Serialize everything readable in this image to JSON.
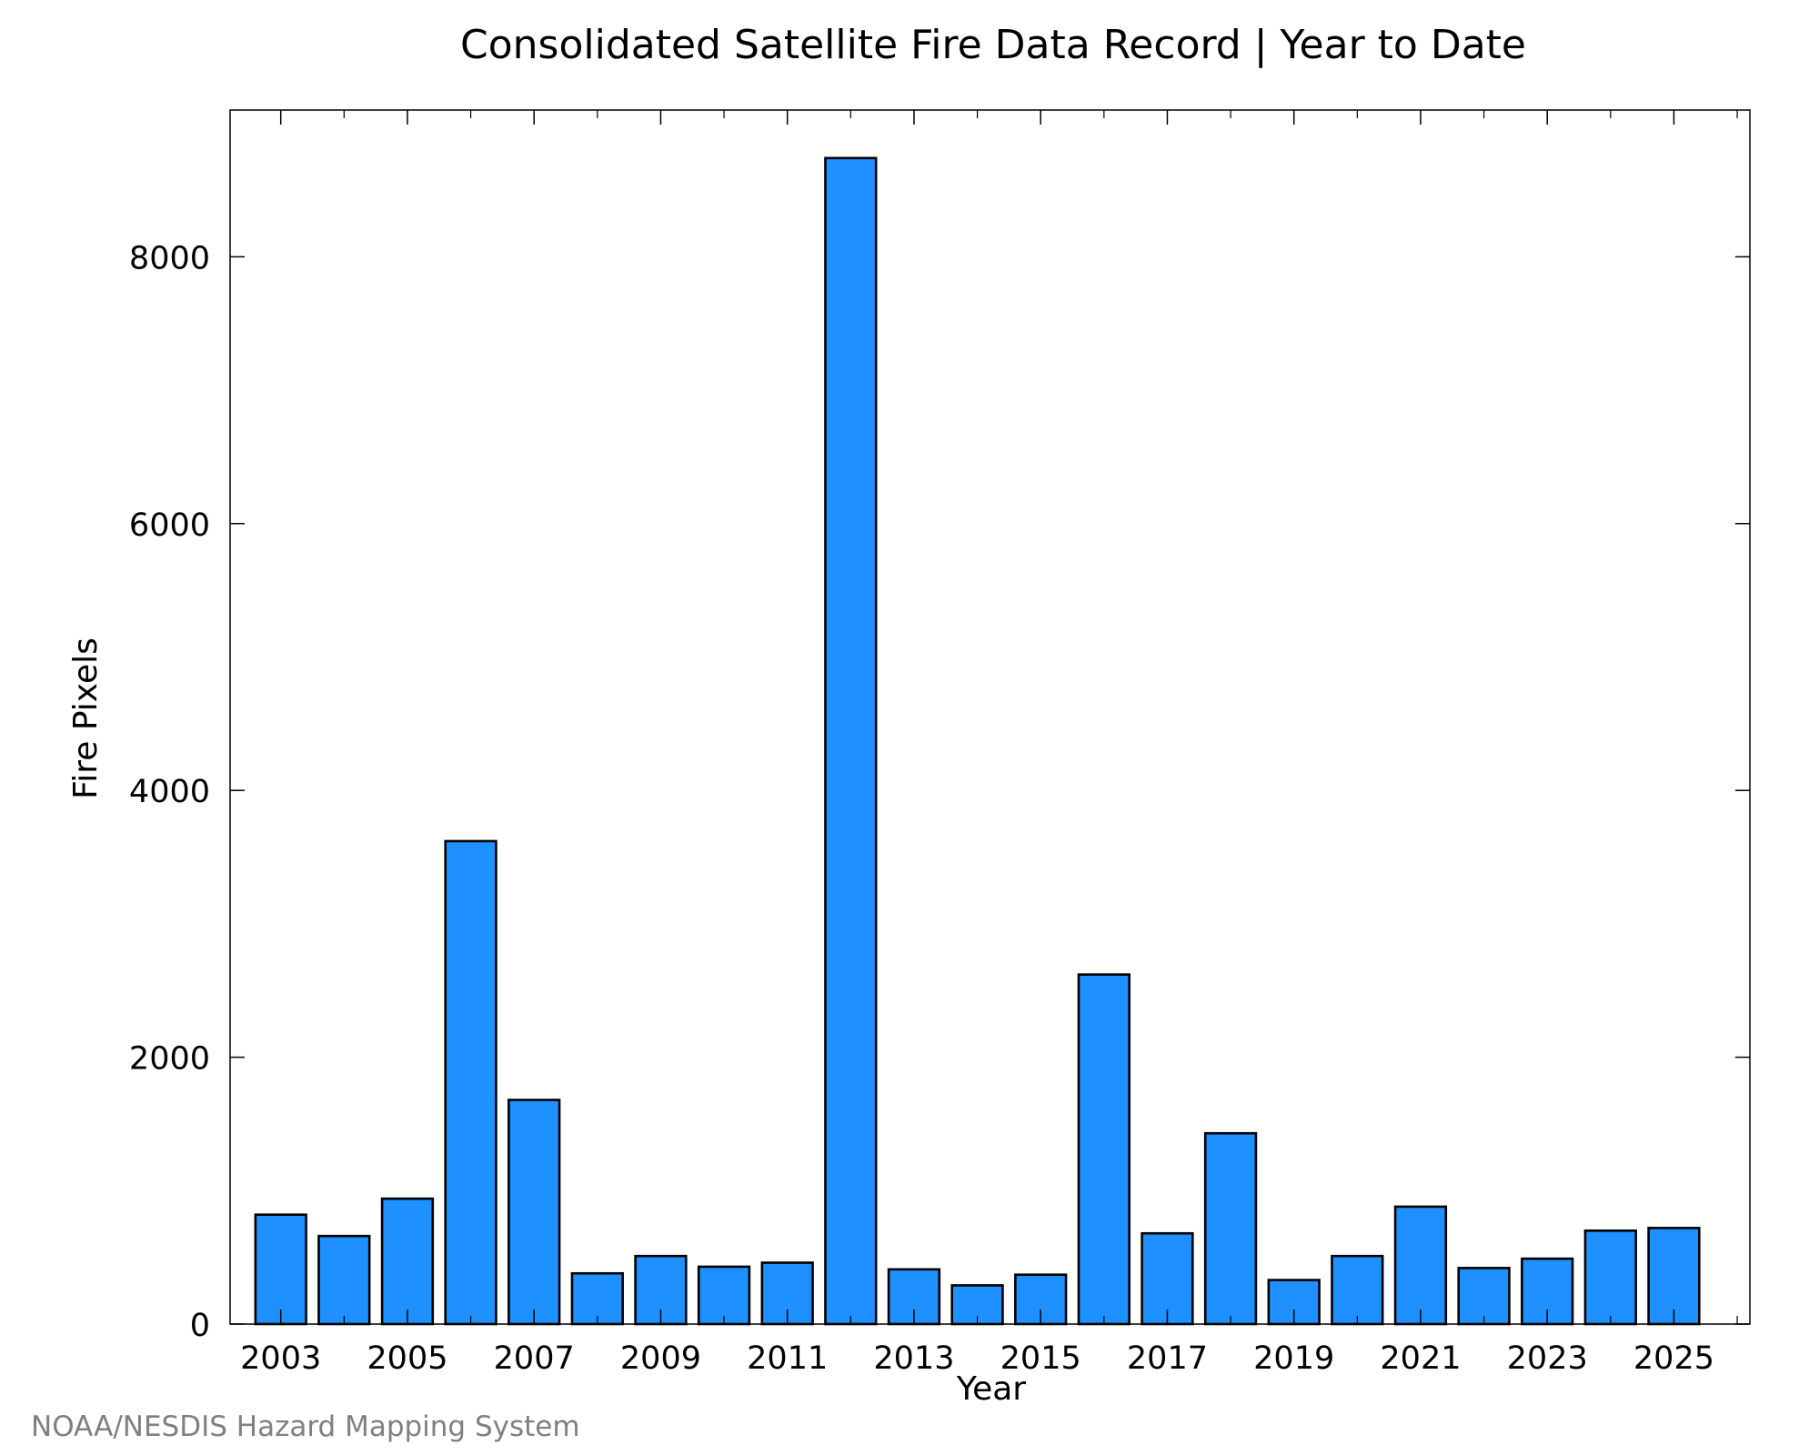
{
  "chart_data": {
    "type": "bar",
    "title": "Consolidated Satellite Fire Data Record | Year to Date",
    "xlabel": "Year",
    "ylabel": "Fire Pixels",
    "credit": "NOAA/NESDIS Hazard Mapping System",
    "categories": [
      2003,
      2004,
      2005,
      2006,
      2007,
      2008,
      2009,
      2010,
      2011,
      2012,
      2013,
      2014,
      2015,
      2016,
      2017,
      2018,
      2019,
      2020,
      2021,
      2022,
      2023,
      2024,
      2025
    ],
    "values": [
      820,
      660,
      940,
      3620,
      1680,
      380,
      510,
      430,
      460,
      8740,
      410,
      290,
      370,
      2620,
      680,
      1430,
      330,
      510,
      880,
      420,
      490,
      700,
      720
    ],
    "xticks": [
      "2003",
      "2005",
      "2007",
      "2009",
      "2011",
      "2013",
      "2015",
      "2017",
      "2019",
      "2021",
      "2023",
      "2025"
    ],
    "yticks": [
      "0",
      "2000",
      "4000",
      "6000",
      "8000"
    ],
    "ylim": [
      0,
      9100
    ],
    "xlim": [
      2002.2,
      2026.2
    ],
    "bar_color": "#1e90ff",
    "edge_color": "#000000",
    "grid": false,
    "legend": false
  }
}
